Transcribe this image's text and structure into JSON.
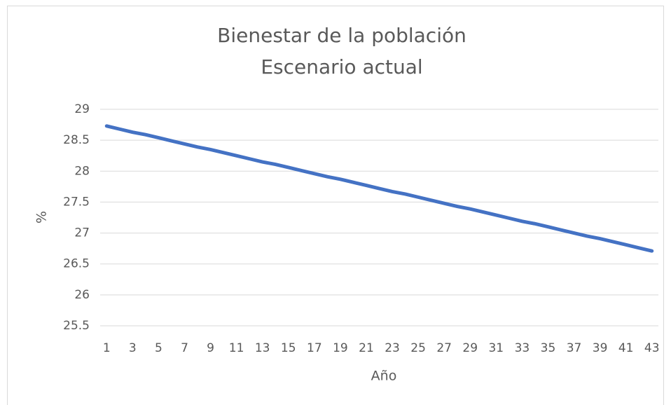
{
  "chart_data": {
    "type": "line",
    "title": "Bienestar de la población",
    "subtitle": "Escenario actual",
    "x_label": "Año",
    "y_label": "%",
    "categories": [
      "1",
      null,
      "3",
      null,
      "5",
      null,
      "7",
      null,
      "9",
      null,
      "11",
      null,
      "13",
      null,
      "15",
      null,
      "17",
      null,
      "19",
      null,
      "21",
      null,
      "23",
      null,
      "25",
      null,
      "27",
      null,
      "29",
      null,
      "31",
      null,
      "33",
      null,
      "35",
      null,
      "37",
      null,
      "39",
      null,
      "41",
      null,
      "43"
    ],
    "values": [
      28.73,
      28.68,
      28.63,
      28.59,
      28.54,
      28.49,
      28.44,
      28.39,
      28.35,
      28.3,
      28.25,
      28.2,
      28.15,
      28.11,
      28.06,
      28.01,
      27.96,
      27.91,
      27.87,
      27.82,
      27.77,
      27.72,
      27.67,
      27.63,
      27.58,
      27.53,
      27.48,
      27.43,
      27.39,
      27.34,
      27.29,
      27.24,
      27.19,
      27.15,
      27.1,
      27.05,
      27.0,
      26.95,
      26.91,
      26.86,
      26.81,
      26.76,
      26.71
    ],
    "color": "#4472c4",
    "ylim": [
      25.5,
      29
    ],
    "yticks": [
      25.5,
      26,
      26.5,
      27,
      27.5,
      28,
      28.5,
      29
    ],
    "grid": true
  }
}
